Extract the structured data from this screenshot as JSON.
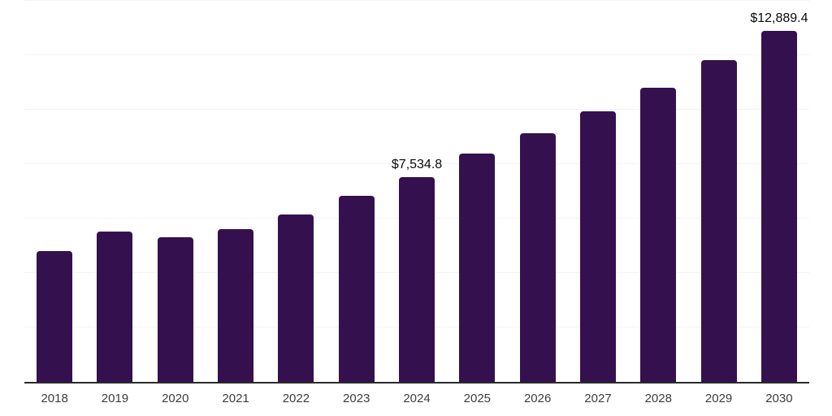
{
  "chart_data": {
    "type": "bar",
    "categories": [
      "2018",
      "2019",
      "2020",
      "2021",
      "2022",
      "2023",
      "2024",
      "2025",
      "2026",
      "2027",
      "2028",
      "2029",
      "2030"
    ],
    "values": [
      4820,
      5535,
      5325,
      5605,
      6150,
      6840,
      7534.8,
      8385,
      9120,
      9935,
      10800,
      11830,
      12889.4
    ],
    "annotations": [
      {
        "index": 6,
        "text": "$7,534.8"
      },
      {
        "index": 12,
        "text": "$12,889.4"
      }
    ],
    "xlabel": "",
    "ylabel": "",
    "ylim": [
      0,
      14000
    ],
    "gridline_step": 2000,
    "grid": "horizontal-only",
    "legend": "none",
    "y_axis_tick_labels": "none"
  },
  "colors": {
    "bar": "#34114E",
    "gridline": "#F3F3F5",
    "axis_line": "#2B2B2B",
    "value_label_text": "#0A0A0A",
    "tick_label_text": "#3C3C3C",
    "background": "#FFFFFF"
  }
}
